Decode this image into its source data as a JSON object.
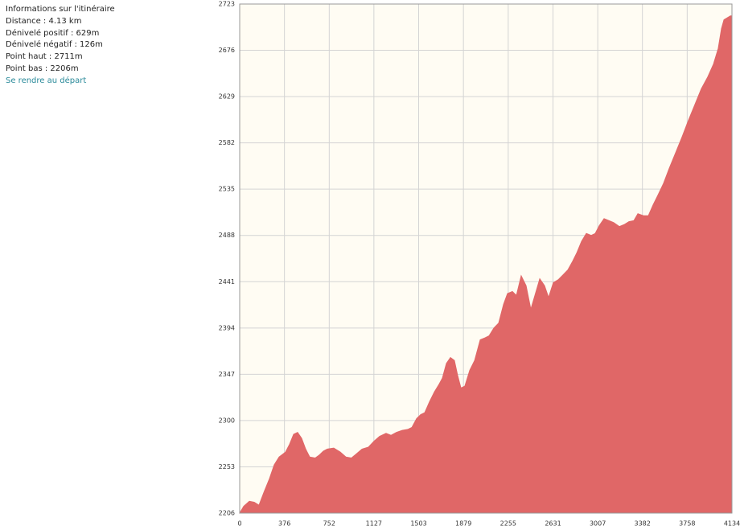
{
  "info": {
    "title": "Informations sur l'itinéraire",
    "lines": [
      "Distance : 4.13 km",
      "Dénivelé positif : 629m",
      "Dénivelé négatif : 126m",
      "Point haut : 2711m",
      "Point bas : 2206m"
    ],
    "link": "Se rendre au départ"
  },
  "chart_data": {
    "type": "area",
    "color": "#e06767",
    "background": "#fffcf3",
    "grid": true,
    "xlim": [
      0,
      4134
    ],
    "xticks": [
      0,
      376,
      752,
      1127,
      1503,
      1879,
      2255,
      2631,
      3007,
      3382,
      3758,
      4134
    ],
    "ylim": [
      2206,
      2723
    ],
    "yticks": [
      2206,
      2253,
      2300,
      2347,
      2394,
      2441,
      2488,
      2535,
      2582,
      2629,
      2676,
      2723
    ],
    "x": [
      0,
      34,
      81,
      122,
      162,
      203,
      250,
      290,
      331,
      385,
      419,
      453,
      486,
      520,
      554,
      588,
      635,
      669,
      703,
      736,
      790,
      844,
      892,
      939,
      979,
      1027,
      1081,
      1128,
      1175,
      1229,
      1270,
      1317,
      1365,
      1412,
      1446,
      1486,
      1520,
      1554,
      1594,
      1635,
      1675,
      1702,
      1736,
      1770,
      1803,
      1830,
      1858,
      1891,
      1932,
      1973,
      2020,
      2060,
      2094,
      2135,
      2175,
      2216,
      2249,
      2290,
      2324,
      2364,
      2405,
      2445,
      2479,
      2520,
      2560,
      2594,
      2634,
      2675,
      2716,
      2756,
      2797,
      2830,
      2871,
      2911,
      2952,
      2986,
      3020,
      3060,
      3101,
      3141,
      3188,
      3229,
      3269,
      3310,
      3344,
      3391,
      3432,
      3472,
      3513,
      3560,
      3607,
      3661,
      3715,
      3769,
      3823,
      3877,
      3931,
      3979,
      4019,
      4046,
      4067,
      4094,
      4121,
      4134
    ],
    "values": [
      2206,
      2213,
      2218,
      2217,
      2214,
      2227,
      2241,
      2255,
      2263,
      2268,
      2276,
      2286,
      2288,
      2282,
      2271,
      2263,
      2262,
      2265,
      2269,
      2271,
      2272,
      2268,
      2263,
      2262,
      2266,
      2271,
      2273,
      2279,
      2284,
      2287,
      2285,
      2288,
      2290,
      2291,
      2293,
      2302,
      2306,
      2308,
      2319,
      2329,
      2337,
      2343,
      2358,
      2364,
      2361,
      2346,
      2333,
      2335,
      2351,
      2361,
      2382,
      2384,
      2386,
      2394,
      2399,
      2418,
      2429,
      2431,
      2427,
      2447,
      2437,
      2413,
      2427,
      2444,
      2437,
      2425,
      2440,
      2443,
      2448,
      2453,
      2462,
      2470,
      2482,
      2490,
      2488,
      2490,
      2498,
      2505,
      2503,
      2501,
      2497,
      2499,
      2502,
      2503,
      2510,
      2508,
      2508,
      2519,
      2529,
      2541,
      2556,
      2572,
      2588,
      2605,
      2621,
      2637,
      2649,
      2662,
      2678,
      2698,
      2707,
      2709,
      2711,
      2711
    ]
  }
}
